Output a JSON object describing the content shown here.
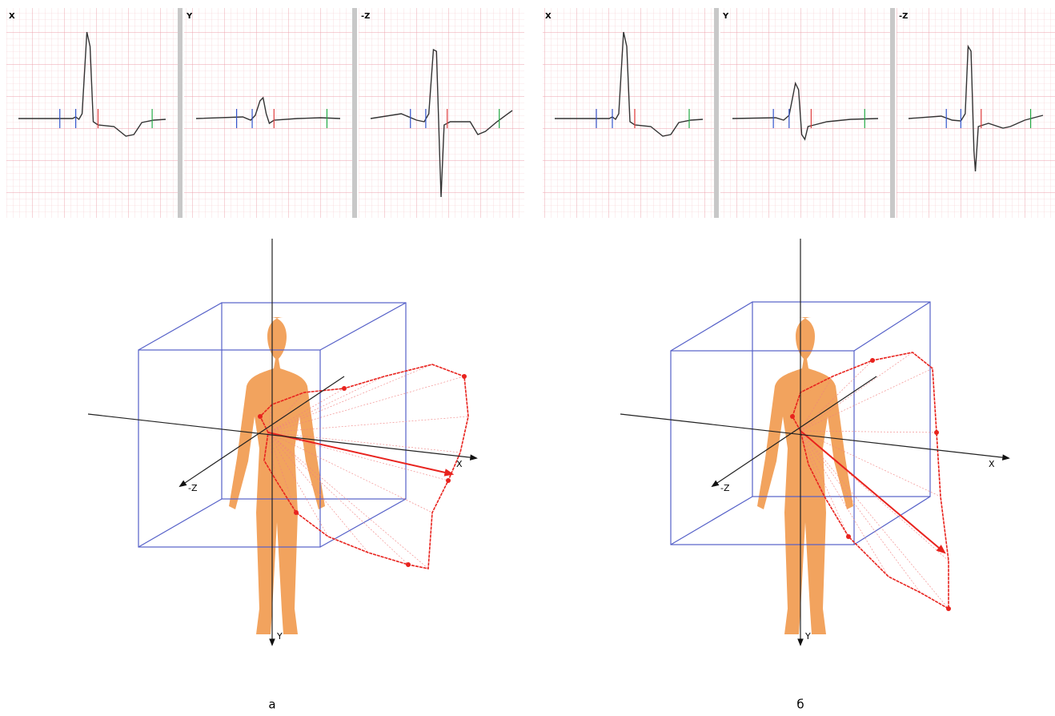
{
  "panels": [
    {
      "leads": [
        {
          "label": "X"
        },
        {
          "label": "Y"
        },
        {
          "label": "-Z"
        }
      ],
      "axes": {
        "x": "X",
        "y": "Y",
        "z": "-Z"
      },
      "caption": "а"
    },
    {
      "leads": [
        {
          "label": "X"
        },
        {
          "label": "Y"
        },
        {
          "label": "-Z"
        }
      ],
      "axes": {
        "x": "X",
        "y": "Y",
        "z": "-Z"
      },
      "caption": "б"
    }
  ]
}
